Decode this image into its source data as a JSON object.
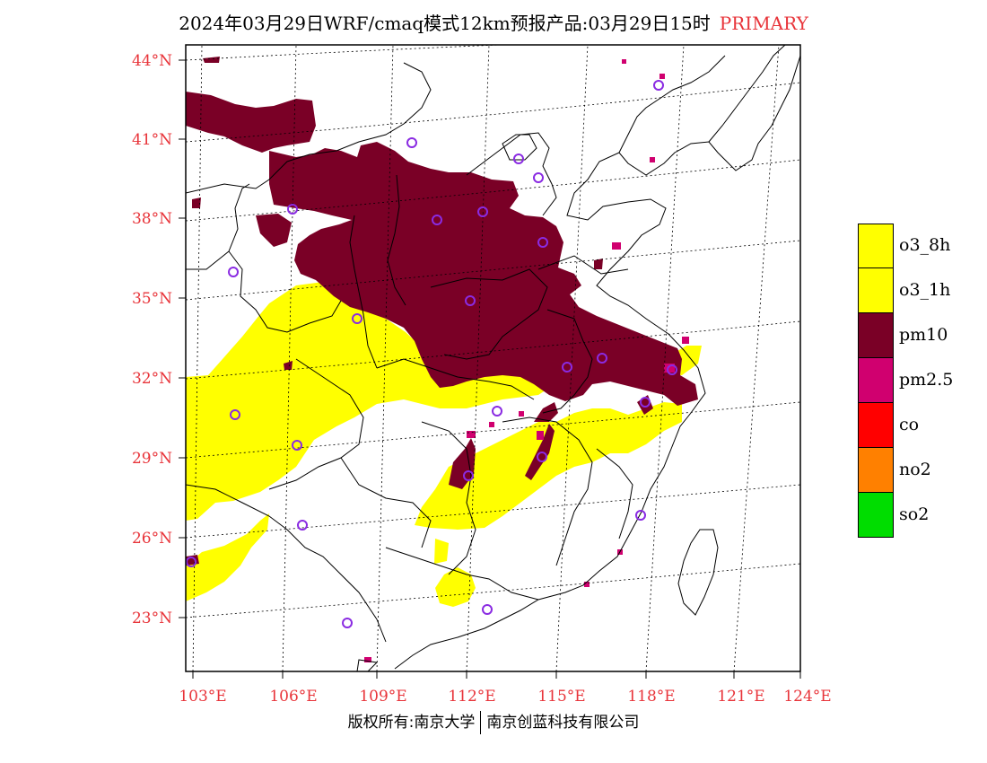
{
  "header": {
    "title": "2024年03月29日WRF/cmaq模式12km预报产品:03月29日15时",
    "tag": "PRIMARY"
  },
  "axes": {
    "latitude_labels": [
      "44°N",
      "41°N",
      "38°N",
      "35°N",
      "32°N",
      "29°N",
      "26°N",
      "23°N"
    ],
    "longitude_labels": [
      "103°E",
      "106°E",
      "109°E",
      "112°E",
      "115°E",
      "118°E",
      "121°E",
      "124°E"
    ],
    "label_color": "#e8343a"
  },
  "legend": {
    "items": [
      {
        "label": "o3_8h",
        "color": "#ffff00"
      },
      {
        "label": "o3_1h",
        "color": "#ffff00"
      },
      {
        "label": "pm10",
        "color": "#7a0026"
      },
      {
        "label": "pm2.5",
        "color": "#d0006f"
      },
      {
        "label": "co",
        "color": "#ff0000"
      },
      {
        "label": "no2",
        "color": "#ff8000"
      },
      {
        "label": "so2",
        "color": "#00dd00"
      }
    ]
  },
  "footer": {
    "left": "版权所有:南京大学",
    "right": "南京创蓝科技有限公司"
  },
  "colors": {
    "pm10": "#7a0026",
    "o3": "#ffff00",
    "pm25": "#d0006f",
    "city_marker": "#8a2be2"
  }
}
